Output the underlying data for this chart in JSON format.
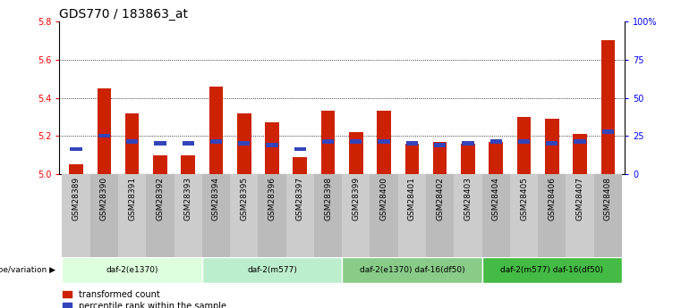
{
  "title": "GDS770 / 183863_at",
  "samples": [
    "GSM28389",
    "GSM28390",
    "GSM28391",
    "GSM28392",
    "GSM28393",
    "GSM28394",
    "GSM28395",
    "GSM28396",
    "GSM28397",
    "GSM28398",
    "GSM28399",
    "GSM28400",
    "GSM28401",
    "GSM28402",
    "GSM28403",
    "GSM28404",
    "GSM28405",
    "GSM28406",
    "GSM28407",
    "GSM28408"
  ],
  "transformed_count": [
    5.05,
    5.45,
    5.32,
    5.1,
    5.1,
    5.46,
    5.32,
    5.27,
    5.09,
    5.33,
    5.22,
    5.33,
    5.16,
    5.17,
    5.16,
    5.17,
    5.3,
    5.29,
    5.21,
    5.7
  ],
  "percentile_rank": [
    5.12,
    5.19,
    5.16,
    5.15,
    5.15,
    5.16,
    5.15,
    5.14,
    5.12,
    5.16,
    5.16,
    5.16,
    5.15,
    5.14,
    5.15,
    5.16,
    5.16,
    5.15,
    5.16,
    5.21
  ],
  "bar_base": 5.0,
  "ylim": [
    5.0,
    5.8
  ],
  "yticks": [
    5.0,
    5.2,
    5.4,
    5.6,
    5.8
  ],
  "right_yticks": [
    0,
    25,
    50,
    75,
    100
  ],
  "right_ylabels": [
    "0",
    "25",
    "50",
    "75",
    "100%"
  ],
  "bar_color": "#cc2200",
  "blue_color": "#3344bb",
  "groups": [
    {
      "label": "daf-2(e1370)",
      "start": 0,
      "end": 5,
      "color": "#ddffdd"
    },
    {
      "label": "daf-2(m577)",
      "start": 5,
      "end": 10,
      "color": "#bbeecc"
    },
    {
      "label": "daf-2(e1370) daf-16(df50)",
      "start": 10,
      "end": 15,
      "color": "#88cc88"
    },
    {
      "label": "daf-2(m577) daf-16(df50)",
      "start": 15,
      "end": 20,
      "color": "#44bb44"
    }
  ],
  "group_label_prefix": "genotype/variation",
  "legend_items": [
    {
      "label": "transformed count",
      "color": "#cc2200"
    },
    {
      "label": "percentile rank within the sample",
      "color": "#3344bb"
    }
  ],
  "bar_width": 0.5,
  "title_fontsize": 10,
  "tick_fontsize": 6.5,
  "sample_bg_color": "#cccccc"
}
